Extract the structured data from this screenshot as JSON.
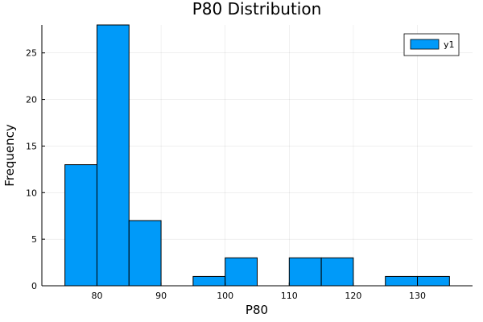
{
  "chart_data": {
    "type": "bar",
    "title": "P80 Distribution",
    "xlabel": "P80",
    "ylabel": "Frequency",
    "bin_edges": [
      75,
      80,
      85,
      90,
      95,
      100,
      105,
      110,
      115,
      120,
      125,
      130,
      135
    ],
    "series": [
      {
        "name": "y1",
        "values": [
          13,
          28,
          7,
          0,
          1,
          3,
          0,
          3,
          3,
          0,
          1,
          1
        ],
        "color": "#009af9"
      }
    ],
    "xlim": [
      71.4,
      138.6
    ],
    "ylim": [
      0,
      28
    ],
    "x_ticks": [
      80,
      90,
      100,
      110,
      120,
      130
    ],
    "y_ticks": [
      0,
      5,
      10,
      15,
      20,
      25
    ],
    "grid": true,
    "legend_position": "top-right"
  }
}
